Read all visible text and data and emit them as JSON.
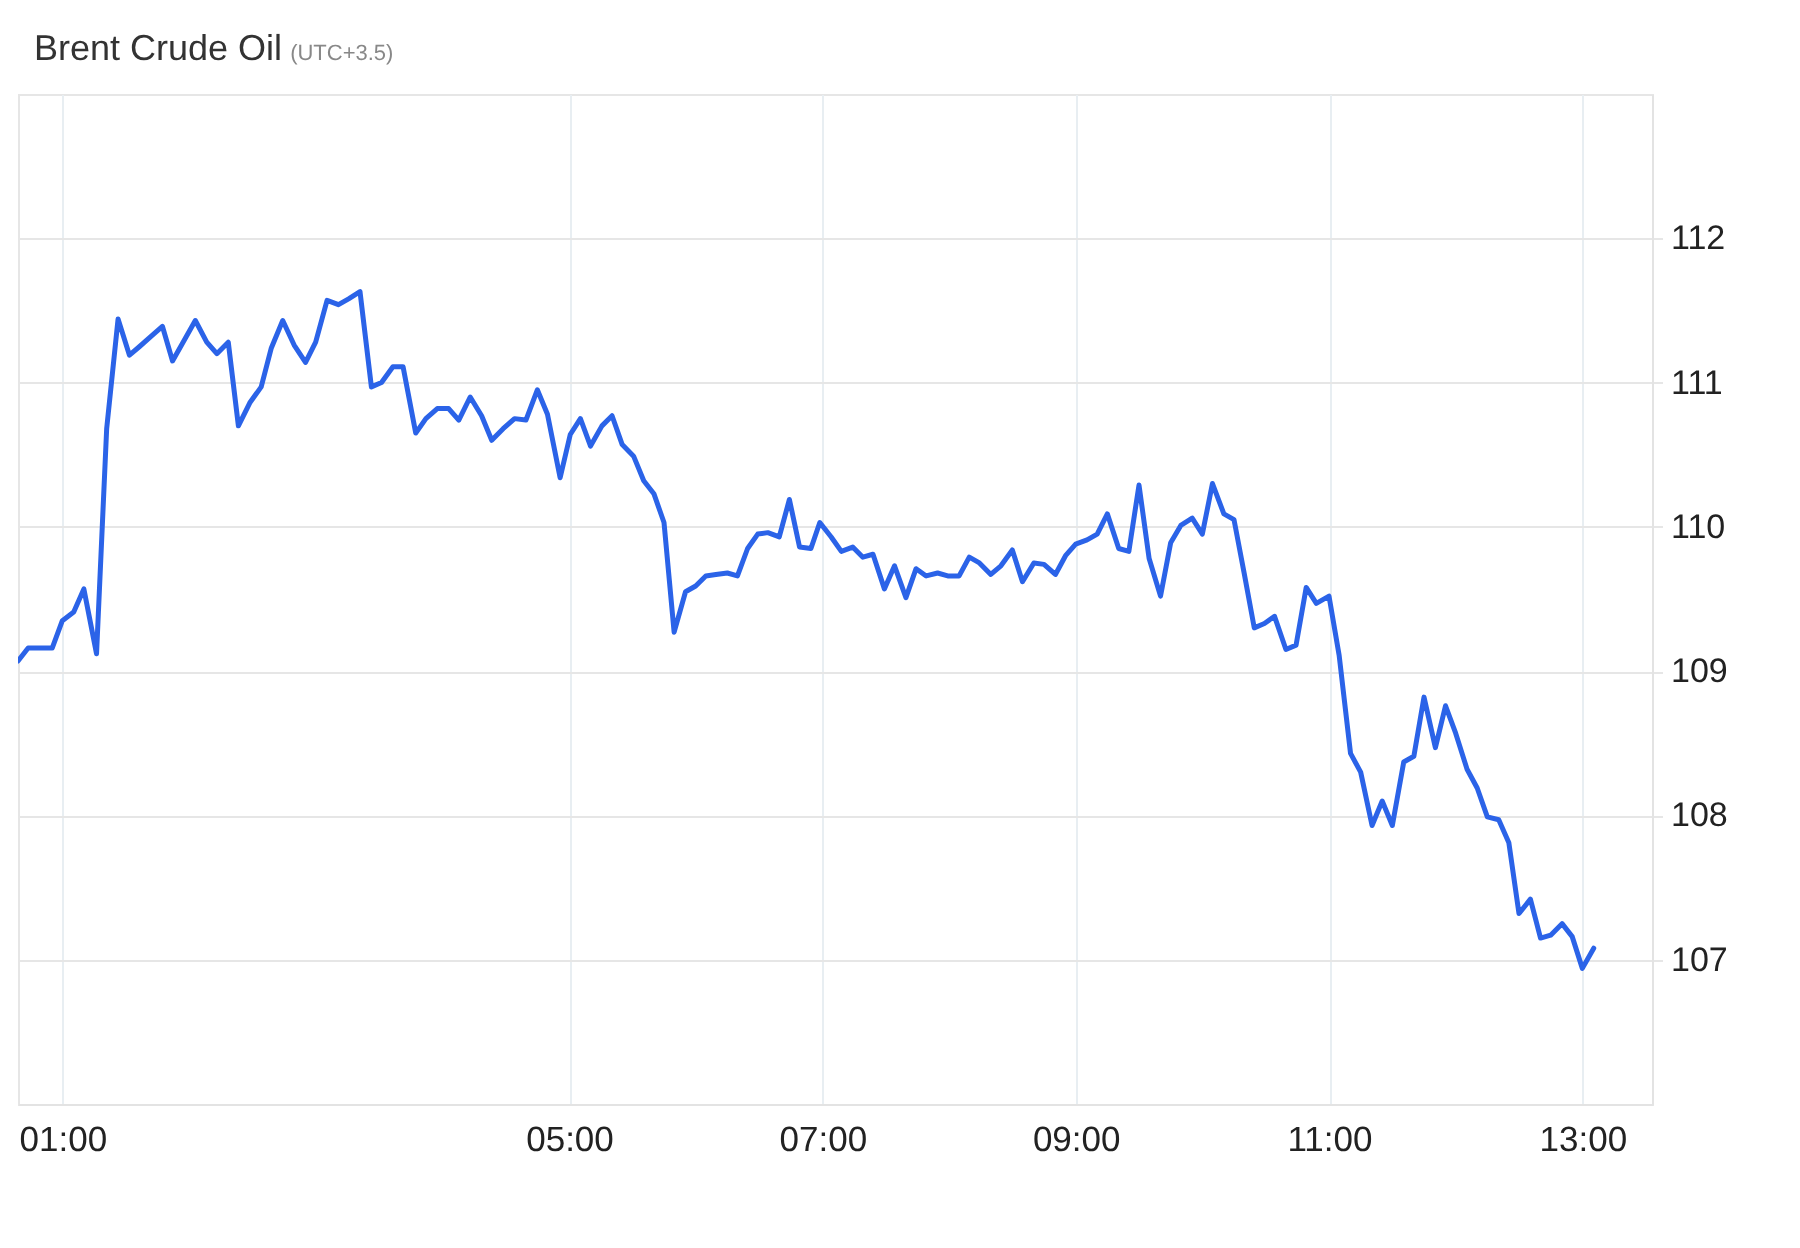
{
  "chart_data": {
    "type": "line",
    "title": "Brent Crude Oil",
    "subtitle": "(UTC+3.5)",
    "x": [
      0.65,
      0.73,
      0.92,
      1.0,
      1.09,
      1.17,
      1.27,
      1.35,
      1.44,
      1.53,
      1.61,
      1.7,
      1.79,
      1.87,
      1.96,
      2.05,
      2.14,
      2.22,
      2.31,
      2.39,
      2.48,
      2.57,
      2.65,
      2.74,
      2.83,
      2.92,
      3.0,
      3.09,
      3.18,
      3.26,
      3.35,
      3.44,
      3.52,
      3.61,
      3.69,
      3.79,
      3.87,
      3.96,
      4.05,
      4.13,
      4.22,
      4.31,
      4.39,
      4.48,
      4.57,
      4.66,
      4.75,
      4.83,
      4.93,
      5.01,
      5.09,
      5.17,
      5.26,
      5.34,
      5.42,
      5.51,
      5.59,
      5.67,
      5.75,
      5.83,
      5.92,
      6.0,
      6.08,
      6.16,
      6.25,
      6.33,
      6.41,
      6.49,
      6.57,
      6.66,
      6.74,
      6.82,
      6.91,
      6.98,
      7.07,
      7.15,
      7.24,
      7.32,
      7.4,
      7.49,
      7.57,
      7.66,
      7.74,
      7.82,
      7.91,
      7.99,
      8.08,
      8.16,
      8.24,
      8.33,
      8.41,
      8.5,
      8.58,
      8.67,
      8.75,
      8.84,
      8.92,
      9.0,
      9.09,
      9.17,
      9.25,
      9.34,
      9.42,
      9.5,
      9.58,
      9.67,
      9.75,
      9.83,
      9.92,
      10.0,
      10.08,
      10.17,
      10.25,
      10.33,
      10.41,
      10.49,
      10.57,
      10.66,
      10.74,
      10.82,
      10.9,
      11.0,
      11.08,
      11.17,
      11.25,
      11.34,
      11.42,
      11.5,
      11.59,
      11.67,
      11.75,
      11.84,
      11.92,
      12.0,
      12.09,
      12.17,
      12.25,
      12.34,
      12.42,
      12.5,
      12.59,
      12.67,
      12.75,
      12.84,
      12.92,
      13.0,
      13.09
    ],
    "values": [
      109.07,
      109.16,
      109.16,
      109.35,
      109.41,
      109.57,
      109.12,
      110.68,
      111.44,
      111.19,
      111.25,
      111.32,
      111.39,
      111.15,
      111.29,
      111.43,
      111.28,
      111.2,
      111.28,
      110.7,
      110.86,
      110.97,
      111.24,
      111.43,
      111.26,
      111.14,
      111.28,
      111.57,
      111.54,
      111.58,
      111.63,
      110.97,
      111.0,
      111.11,
      111.11,
      110.65,
      110.75,
      110.82,
      110.82,
      110.74,
      110.9,
      110.77,
      110.6,
      110.68,
      110.75,
      110.74,
      110.95,
      110.78,
      110.34,
      110.64,
      110.75,
      110.56,
      110.7,
      110.77,
      110.57,
      110.49,
      110.32,
      110.23,
      110.03,
      109.27,
      109.55,
      109.59,
      109.66,
      109.67,
      109.68,
      109.66,
      109.85,
      109.95,
      109.96,
      109.93,
      110.19,
      109.86,
      109.85,
      110.03,
      109.93,
      109.83,
      109.86,
      109.79,
      109.81,
      109.57,
      109.73,
      109.51,
      109.71,
      109.66,
      109.68,
      109.66,
      109.66,
      109.79,
      109.75,
      109.67,
      109.73,
      109.84,
      109.62,
      109.75,
      109.74,
      109.67,
      109.8,
      109.88,
      109.91,
      109.95,
      110.09,
      109.85,
      109.83,
      110.29,
      109.78,
      109.52,
      109.89,
      110.01,
      110.06,
      109.95,
      110.3,
      110.09,
      110.05,
      109.68,
      109.3,
      109.33,
      109.38,
      109.15,
      109.18,
      109.58,
      109.47,
      109.52,
      109.11,
      108.43,
      108.3,
      107.93,
      108.1,
      107.93,
      108.37,
      108.41,
      108.82,
      108.47,
      108.76,
      108.57,
      108.32,
      108.19,
      107.99,
      107.97,
      107.81,
      107.32,
      107.42,
      107.15,
      107.17,
      107.25,
      107.16,
      106.94,
      107.08
    ],
    "color": "#2b63e8",
    "xlim": [
      0.65,
      13.55
    ],
    "ylim": [
      106,
      113
    ],
    "xticks": [
      {
        "value": 1,
        "label": "01:00"
      },
      {
        "value": 5,
        "label": "05:00"
      },
      {
        "value": 7,
        "label": "07:00"
      },
      {
        "value": 9,
        "label": "09:00"
      },
      {
        "value": 11,
        "label": "11:00"
      },
      {
        "value": 13,
        "label": "13:00"
      }
    ],
    "yticks": [
      107,
      108,
      109,
      110,
      111,
      112
    ],
    "grid": true
  }
}
